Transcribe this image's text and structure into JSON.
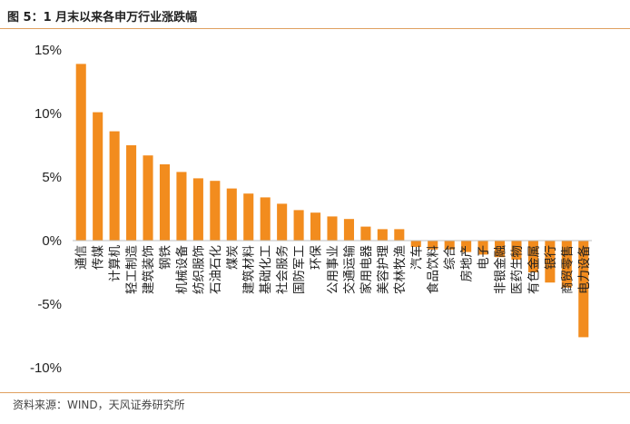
{
  "title": "图 5：1 月末以来各申万行业涨跌幅",
  "source": "资料来源：WIND，天风证券研究所",
  "colors": {
    "bar": "#f28c1e",
    "axis": "#bfbfbf",
    "accent": "#e0a060"
  },
  "chart_data": {
    "type": "bar",
    "title": "",
    "xlabel": "",
    "ylabel": "",
    "ylim": [
      -10,
      15
    ],
    "yticks": [
      15,
      10,
      5,
      0,
      -5,
      -10
    ],
    "ytick_labels": [
      "15%",
      "10%",
      "5%",
      "0%",
      "-5%",
      "-10%"
    ],
    "grid": false,
    "legend": "none",
    "categories": [
      "通信",
      "传媒",
      "计算机",
      "轻工制造",
      "建筑装饰",
      "钢铁",
      "机械设备",
      "纺织服饰",
      "石油石化",
      "煤炭",
      "建筑材料",
      "基础化工",
      "社会服务",
      "国防军工",
      "环保",
      "公用事业",
      "交通运输",
      "家用电器",
      "美容护理",
      "农林牧渔",
      "汽车",
      "食品饮料",
      "综合",
      "房地产",
      "电子",
      "非银金融",
      "医药生物",
      "有色金属",
      "银行",
      "商贸零售",
      "电力设备"
    ],
    "values": [
      13.9,
      10.1,
      8.6,
      7.5,
      6.7,
      6.0,
      5.4,
      4.9,
      4.7,
      4.1,
      3.7,
      3.4,
      2.9,
      2.4,
      2.2,
      1.9,
      1.7,
      1.1,
      0.9,
      0.9,
      -0.5,
      -0.7,
      -0.7,
      -0.9,
      -1.1,
      -1.3,
      -1.5,
      -2.5,
      -3.3,
      -3.7,
      -7.6
    ]
  }
}
